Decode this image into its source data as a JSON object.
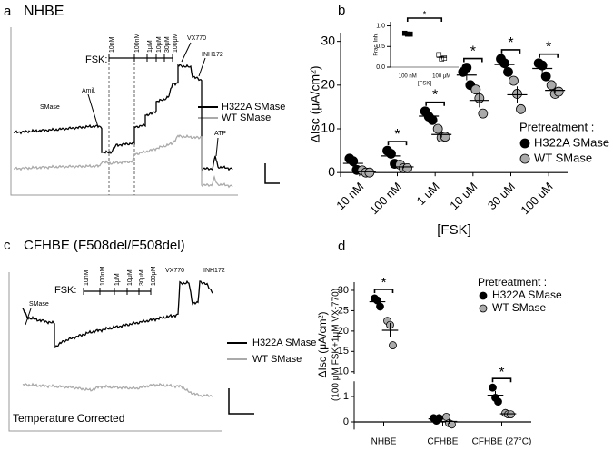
{
  "panel_labels": [
    "a",
    "b",
    "c",
    "d"
  ],
  "panel_a": {
    "title": "NHBE",
    "fsk_label": "FSK:",
    "fsk_doses": [
      "10nM",
      "100nM",
      "1μM",
      "10μM",
      "30μM",
      "100μM"
    ],
    "annotations": {
      "vx770": "VX770",
      "inh172": "INH172",
      "smase": "SMase",
      "amil": "Amil.",
      "atp": "ATP"
    },
    "legend": [
      "H322A SMase",
      "WT SMase"
    ]
  },
  "panel_c": {
    "title": "CFHBE (F508del/F508del)",
    "fsk_label": "FSK:",
    "fsk_doses": [
      "10nM",
      "100nM",
      "1μM",
      "10μM",
      "30μM",
      "100μM"
    ],
    "annotations": {
      "vx770": "VX770",
      "inh172": "INH172",
      "smase": "SMase"
    },
    "legend": [
      "H322A SMase",
      "WT SMase"
    ],
    "note": "Temperature Corrected"
  },
  "chart_data": [
    {
      "type": "dot",
      "ylabel": "ΔIsc (μA/cm²)",
      "xlabel": "[FSK]",
      "categories": [
        "10 nM",
        "100 nM",
        "1 uM",
        "10 uM",
        "30 uM",
        "100 uM"
      ],
      "ylim": [
        -1,
        32
      ],
      "yticks": [
        0,
        10,
        20,
        30
      ],
      "legend_title": "Pretreatment :",
      "significance_label": "*",
      "significant": [
        false,
        true,
        true,
        true,
        true,
        true
      ],
      "series": [
        {
          "name": "H322A SMase",
          "color": "#000000",
          "values": [
            [
              3.2,
              2.6,
              0.6
            ],
            [
              5,
              4.3,
              2
            ],
            [
              14,
              12.8,
              12
            ],
            [
              23,
              24,
              20
            ],
            [
              26,
              25,
              23
            ],
            [
              25,
              24.5,
              22
            ]
          ],
          "means": [
            2.1,
            3.8,
            12.9,
            22.3,
            24.7,
            23.8
          ],
          "errors": [
            0.8,
            0.9,
            0.6,
            1.2,
            0.9,
            0.9
          ]
        },
        {
          "name": "WT SMase",
          "color": "#aaaaaa",
          "values": [
            [
              0.5,
              0,
              0
            ],
            [
              1.8,
              1,
              1
            ],
            [
              10,
              8,
              8.2
            ],
            [
              19,
              17,
              13.5
            ],
            [
              21,
              18,
              14.5
            ],
            [
              20,
              18,
              18.5
            ]
          ],
          "means": [
            0.2,
            1.3,
            8.7,
            16.5,
            17.8,
            18.8
          ],
          "errors": [
            0.2,
            0.3,
            0.7,
            1.6,
            1.9,
            0.6
          ]
        }
      ]
    },
    {
      "type": "dot",
      "ylabel": "Frac. Inh.",
      "xlabel": "[FSK]",
      "categories": [
        "100 nM",
        "100 μM"
      ],
      "ylim": [
        0,
        1.1
      ],
      "yticks": [
        {
          "value": 0,
          "label": "0.0"
        },
        {
          "value": 0.5,
          "label": "0.5"
        },
        {
          "value": 1,
          "label": "1.0"
        }
      ],
      "significance_label": "*",
      "significant": true,
      "fills": [
        "#000000",
        "none"
      ],
      "series": [
        {
          "color": "#000000",
          "values": [
            [
              0.82,
              0.8,
              0.8
            ],
            [
              0.3,
              0.2,
              0.22
            ]
          ],
          "means": [
            0.81,
            0.24
          ],
          "errors": [
            0.01,
            0.03
          ]
        }
      ]
    },
    {
      "type": "dot",
      "broken_axis": true,
      "ylabel": [
        "ΔIsc (μA/cm²)",
        "(100 μM FSK+1μM VX-770)"
      ],
      "categories": [
        "NHBE",
        "CFHBE",
        "CFHBE (27°C)"
      ],
      "ylim_lower": [
        -0.3,
        1.6
      ],
      "ylim_upper": [
        9.5,
        32
      ],
      "yticks": [
        0,
        1,
        10,
        15,
        20,
        25,
        30
      ],
      "legend_title": "Pretreatment :",
      "significance_label": "*",
      "significant": [
        true,
        false,
        true
      ],
      "series": [
        {
          "name": "H322A SMase",
          "color": "#000000",
          "values": [
            [
              28,
              27.5,
              26
            ],
            [
              0.15,
              0.05,
              0.15
            ],
            [
              1.35,
              0.95,
              0.8
            ]
          ],
          "means": [
            27.2,
            0.12,
            1.05
          ],
          "errors": [
            0.6,
            0.03,
            0.17
          ]
        },
        {
          "name": "WT SMase",
          "color": "#aaaaaa",
          "values": [
            [
              22.5,
              21.5,
              16.5
            ],
            [
              0.2,
              -0.05,
              -0.1
            ],
            [
              0.35,
              0.3,
              0.3
            ]
          ],
          "means": [
            20.2,
            0.02,
            0.32
          ],
          "errors": [
            1.8,
            0.09,
            0.02
          ]
        }
      ]
    }
  ]
}
